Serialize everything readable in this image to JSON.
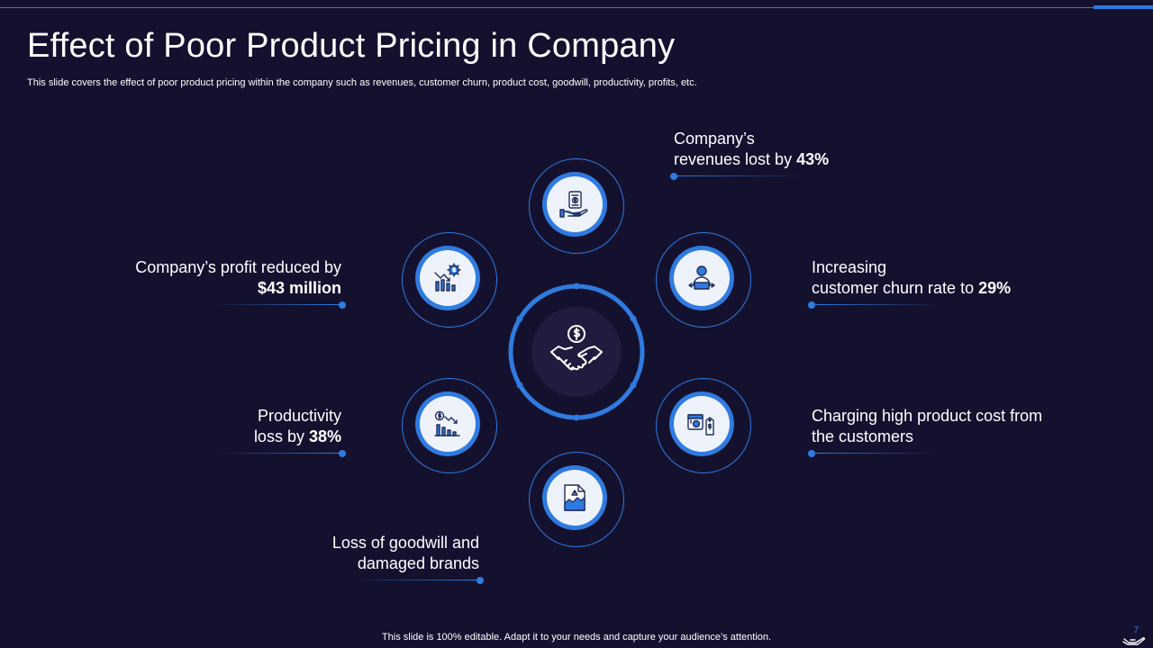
{
  "slide": {
    "title": "Effect of Poor Product Pricing in Company",
    "subtitle": "This slide covers the effect of poor product pricing within the company such as revenues, customer churn, product cost, goodwill, productivity, profits, etc.",
    "footer": "This slide is 100% editable. Adapt it to your needs and capture your audience’s attention.",
    "page_number": "7"
  },
  "colors": {
    "background": "#14112f",
    "accent": "#2f7be0",
    "icon_disc": "#eef3fb",
    "icon_stroke": "#1f2c5c"
  },
  "center": {
    "icon": "handshake-dollar-icon"
  },
  "items": [
    {
      "id": "revenues",
      "icon": "hand-invoice-icon",
      "line1": "Company’s",
      "line2_prefix": "revenues lost by ",
      "line2_bold": "43%"
    },
    {
      "id": "churn",
      "icon": "customer-leaving-icon",
      "line1": "Increasing",
      "line2_prefix": "customer churn rate to ",
      "line2_bold": "29%"
    },
    {
      "id": "cost",
      "icon": "price-tag-icon",
      "line1": "Charging high product cost from",
      "line2_prefix": "the customers",
      "line2_bold": ""
    },
    {
      "id": "goodwill",
      "icon": "damaged-document-icon",
      "line1": "Loss of goodwill and",
      "line2_prefix": "damaged brands",
      "line2_bold": ""
    },
    {
      "id": "productivity",
      "icon": "declining-chart-icon",
      "line1": "Productivity",
      "line2_prefix": "loss by ",
      "line2_bold": "38%"
    },
    {
      "id": "profit",
      "icon": "profit-gear-chart-icon",
      "line1": "Company’s profit reduced by",
      "line2_prefix": "",
      "line2_bold": "$43 million"
    }
  ]
}
